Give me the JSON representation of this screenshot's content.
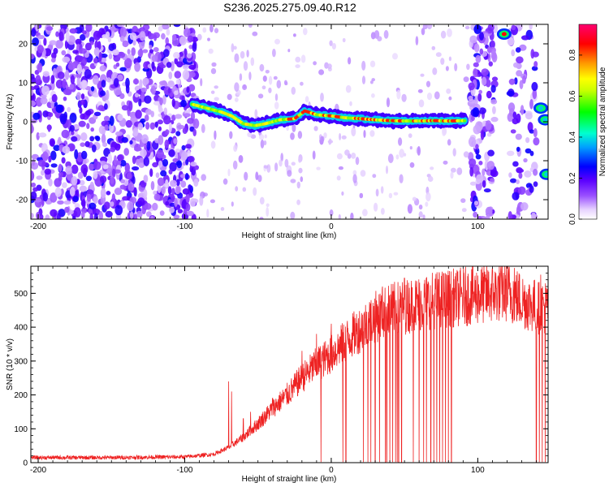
{
  "figure": {
    "title": "S236.2025.275.09.40.R12"
  },
  "chart_data": [
    {
      "type": "heatmap",
      "xlabel": "Height of straight line (km)",
      "ylabel": "Frequency (Hz)",
      "xlim": [
        -205,
        148
      ],
      "ylim": [
        -25,
        25
      ],
      "x_ticks": [
        "-200",
        "-100",
        "0",
        "100"
      ],
      "y_ticks": [
        "-20",
        "-10",
        "0",
        "10",
        "20"
      ],
      "colorbar": {
        "label": "Normalized spectral amplitude",
        "range": [
          0,
          0.95
        ],
        "ticks": [
          "0.0",
          "0.2",
          "0.4",
          "0.6",
          "0.8"
        ]
      },
      "ridge": [
        {
          "x": -95,
          "y": 4.5
        },
        {
          "x": -85,
          "y": 3.5
        },
        {
          "x": -75,
          "y": 2.5
        },
        {
          "x": -68,
          "y": 1.5
        },
        {
          "x": -60,
          "y": -0.5
        },
        {
          "x": -52,
          "y": -1.0
        },
        {
          "x": -45,
          "y": -0.5
        },
        {
          "x": -35,
          "y": 0.5
        },
        {
          "x": -25,
          "y": 0.8
        },
        {
          "x": -18,
          "y": 2.8
        },
        {
          "x": -10,
          "y": 1.8
        },
        {
          "x": 0,
          "y": 1.5
        },
        {
          "x": 10,
          "y": 1.0
        },
        {
          "x": 20,
          "y": 0.8
        },
        {
          "x": 30,
          "y": 0.5
        },
        {
          "x": 40,
          "y": 0.3
        },
        {
          "x": 50,
          "y": 0.2
        },
        {
          "x": 60,
          "y": 0.2
        },
        {
          "x": 70,
          "y": 0.3
        },
        {
          "x": 80,
          "y": 0.2
        },
        {
          "x": 92,
          "y": 0.3
        }
      ],
      "noise_regions": [
        {
          "from": -205,
          "to": -92,
          "density": "high"
        },
        {
          "from": 95,
          "to": 112,
          "density": "high"
        },
        {
          "from": 122,
          "to": 140,
          "density": "medium"
        }
      ],
      "hot_spots": [
        {
          "x": 118,
          "y": 22.5,
          "level": 0.9
        },
        {
          "x": 143,
          "y": 3.5,
          "level": 0.4
        },
        {
          "x": 146,
          "y": 0.5,
          "level": 0.4
        },
        {
          "x": 147,
          "y": -13.5,
          "level": 0.4
        }
      ]
    },
    {
      "type": "line",
      "xlabel": "Height of straight line (km)",
      "ylabel": "SNR (10 * v/v)",
      "xlim": [
        -205,
        148
      ],
      "ylim": [
        0,
        580
      ],
      "x_ticks": [
        "-200",
        "-100",
        "0",
        "100"
      ],
      "y_ticks": [
        "0",
        "100",
        "200",
        "300",
        "400",
        "500"
      ],
      "color": "#ee2222",
      "series": [
        {
          "envelope": [
            {
              "x": -205,
              "y": 15
            },
            {
              "x": -150,
              "y": 15
            },
            {
              "x": -100,
              "y": 17
            },
            {
              "x": -80,
              "y": 25
            },
            {
              "x": -70,
              "y": 45
            },
            {
              "x": -60,
              "y": 75
            },
            {
              "x": -50,
              "y": 115
            },
            {
              "x": -40,
              "y": 160
            },
            {
              "x": -30,
              "y": 200
            },
            {
              "x": -20,
              "y": 250
            },
            {
              "x": -10,
              "y": 290
            },
            {
              "x": 0,
              "y": 320
            },
            {
              "x": 10,
              "y": 360
            },
            {
              "x": 20,
              "y": 395
            },
            {
              "x": 30,
              "y": 430
            },
            {
              "x": 40,
              "y": 450
            },
            {
              "x": 50,
              "y": 460
            },
            {
              "x": 60,
              "y": 470
            },
            {
              "x": 70,
              "y": 480
            },
            {
              "x": 80,
              "y": 485
            },
            {
              "x": 90,
              "y": 490
            },
            {
              "x": 100,
              "y": 495
            },
            {
              "x": 110,
              "y": 500
            },
            {
              "x": 120,
              "y": 505
            },
            {
              "x": 130,
              "y": 480
            },
            {
              "x": 140,
              "y": 460
            },
            {
              "x": 148,
              "y": 460
            }
          ],
          "spikes": [
            {
              "x": -70,
              "y": 240
            },
            {
              "x": -68,
              "y": 210
            },
            {
              "x": -60,
              "y": 130
            },
            {
              "x": -55,
              "y": 150
            },
            {
              "x": -40,
              "y": 190
            },
            {
              "x": -20,
              "y": 330
            },
            {
              "x": -10,
              "y": 380
            },
            {
              "x": 0,
              "y": 410
            },
            {
              "x": 35,
              "y": 520
            },
            {
              "x": 50,
              "y": 545
            },
            {
              "x": 85,
              "y": 560
            },
            {
              "x": 115,
              "y": 560
            },
            {
              "x": 125,
              "y": 575
            },
            {
              "x": 143,
              "y": 555
            }
          ],
          "dropouts": [
            -10,
            -7,
            8,
            10,
            22,
            25,
            27,
            30,
            33,
            35,
            37,
            38,
            40,
            42,
            44,
            45,
            46,
            48,
            50,
            56,
            60,
            63,
            65,
            68,
            70,
            72,
            74,
            76,
            78,
            80,
            82,
            140,
            142,
            144,
            146
          ]
        }
      ]
    }
  ]
}
